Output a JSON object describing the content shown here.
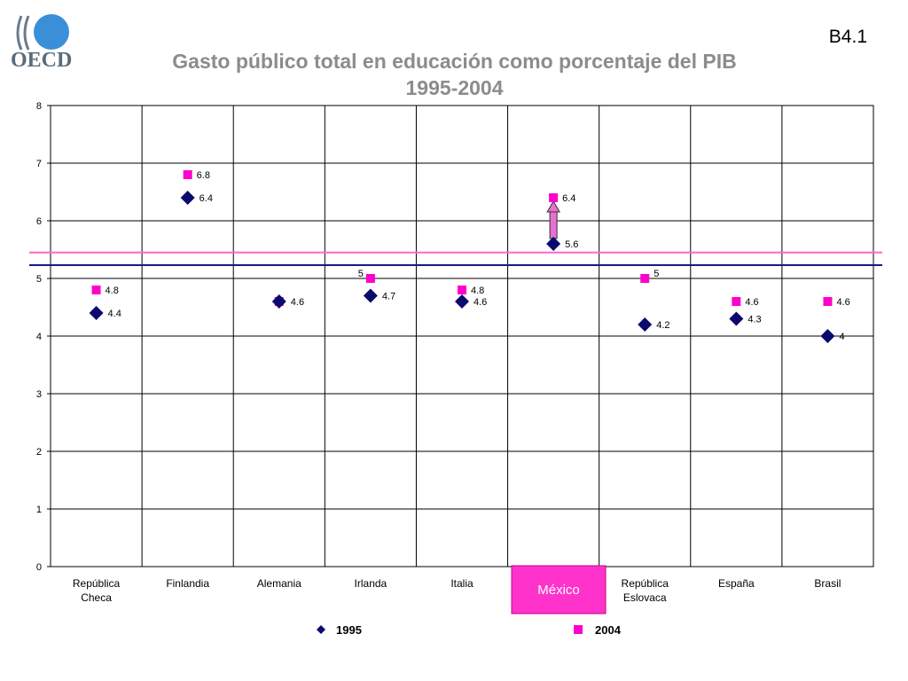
{
  "header": {
    "logo_text": "OECD",
    "slide_id": "B4.1",
    "title_line1": "Gasto público total en educación como porcentaje del PIB",
    "title_line2": "1995-2004"
  },
  "highlight": {
    "label": "México",
    "color": "#ff33cc"
  },
  "colors": {
    "series_1995": "#0a0a6e",
    "series_2004": "#ff00cc",
    "ref_line_2004": "#ff66cc",
    "ref_line_1995": "#1a1a80",
    "arrow": "#e870d0"
  },
  "chart_data": {
    "type": "scatter",
    "title": "Gasto público total en educación como porcentaje del PIB 1995-2004",
    "categories": [
      [
        "República",
        "Checa"
      ],
      [
        "Finlandia"
      ],
      [
        "Alemania"
      ],
      [
        "Irlanda"
      ],
      [
        "Italia"
      ],
      [
        "México"
      ],
      [
        "República",
        "Eslovaca"
      ],
      [
        "España"
      ],
      [
        "Brasil"
      ]
    ],
    "series": [
      {
        "name": "1995",
        "marker": "diamond",
        "values": [
          4.4,
          6.4,
          4.6,
          4.7,
          4.6,
          5.6,
          4.2,
          4.3,
          4
        ],
        "labels": [
          "4.4",
          "6.4",
          "4.6",
          "4.7",
          "4.6",
          "5.6",
          "4.2",
          "4.3",
          "4"
        ]
      },
      {
        "name": "2004",
        "marker": "square",
        "values": [
          4.8,
          6.8,
          4.6,
          5,
          4.8,
          6.4,
          5,
          4.6,
          4.6
        ],
        "labels": [
          "4.8",
          "6.8",
          "",
          "5",
          "4.8",
          "6.4",
          "5",
          "4.6",
          "4.6"
        ]
      }
    ],
    "reference_lines": [
      5.45,
      5.23
    ],
    "yticks": [
      "0",
      "1",
      "2",
      "3",
      "4",
      "5",
      "6",
      "7",
      "8"
    ],
    "ylim": [
      0,
      8
    ],
    "grid": true,
    "legend": "bottom"
  }
}
